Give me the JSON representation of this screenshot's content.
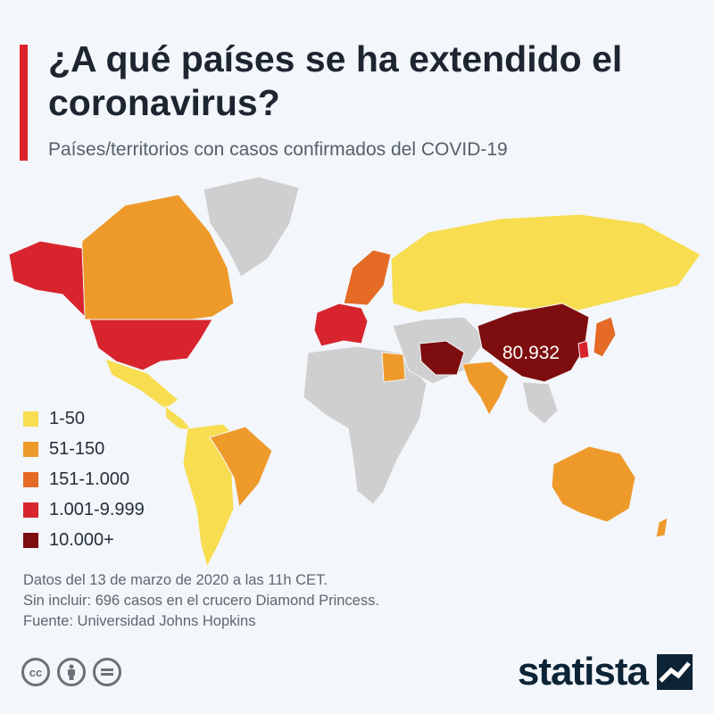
{
  "title": "¿A qué países se ha extendido el coronavirus?",
  "subtitle": "Países/territorios con casos confirmados del COVID-19",
  "colors": {
    "accent": "#dd2127",
    "no_data": "#cfcfcf",
    "ocean": "#f3f6fa"
  },
  "legend": [
    {
      "label": "1-50",
      "color": "#f7dd4f"
    },
    {
      "label": "51-150",
      "color": "#ee9a2b"
    },
    {
      "label": "151-1.000",
      "color": "#e46a25"
    },
    {
      "label": "1.001-9.999",
      "color": "#d8242c"
    },
    {
      "label": "10.000+",
      "color": "#7d0d0e"
    }
  ],
  "map": {
    "callout_label": "80.932",
    "callout_country": "China",
    "regions": [
      {
        "name": "Alaska",
        "category": 3
      },
      {
        "name": "Canada",
        "category": 1
      },
      {
        "name": "United States",
        "category": 3
      },
      {
        "name": "Mexico",
        "category": 0
      },
      {
        "name": "Greenland",
        "category": -1
      },
      {
        "name": "Brazil",
        "category": 1
      },
      {
        "name": "South America (other)",
        "category": 0
      },
      {
        "name": "Africa",
        "category": -1
      },
      {
        "name": "Egypt",
        "category": 1
      },
      {
        "name": "Western Europe",
        "category": 3
      },
      {
        "name": "Scandinavia",
        "category": 2
      },
      {
        "name": "Russia",
        "category": 0
      },
      {
        "name": "Iran",
        "category": 4
      },
      {
        "name": "China",
        "category": 4
      },
      {
        "name": "India",
        "category": 1
      },
      {
        "name": "Korea",
        "category": 3
      },
      {
        "name": "Japan",
        "category": 2
      },
      {
        "name": "Australia",
        "category": 1
      }
    ]
  },
  "notes": [
    "Datos del 13 de marzo de 2020 a las 11h CET.",
    "Sin incluir: 696 casos en el crucero Diamond Princess.",
    "Fuente: Universidad Johns Hopkins"
  ],
  "footer": {
    "brand": "statista",
    "license_icons": [
      "cc-icon",
      "attribution-icon",
      "no-derivatives-icon"
    ]
  }
}
